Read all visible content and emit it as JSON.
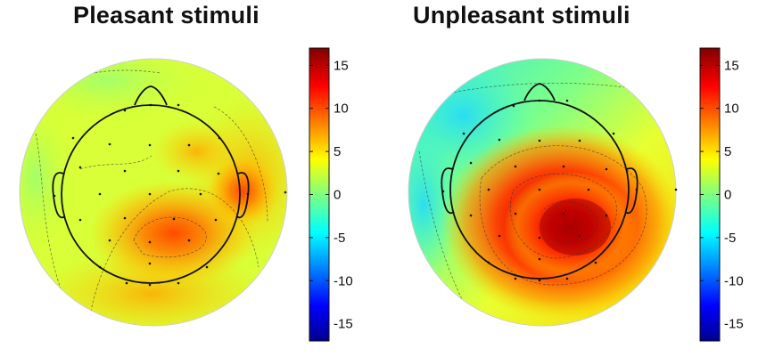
{
  "panels": [
    {
      "title": "Pleasant stimuli",
      "colorbar": {
        "min": -17,
        "max": 17,
        "ticks": [
          "15",
          "10",
          "5",
          "0",
          "-5",
          "-10",
          "-15"
        ]
      }
    },
    {
      "title": "Unpleasant stimuli",
      "colorbar": {
        "min": -17,
        "max": 17,
        "ticks": [
          "15",
          "10",
          "5",
          "0",
          "-5",
          "-10",
          "-15"
        ]
      }
    }
  ],
  "colormap": "jet",
  "colors": {
    "background": "#ffffff",
    "head_outline": "#111111",
    "electrode": "#111111",
    "contour": "#333333"
  }
}
